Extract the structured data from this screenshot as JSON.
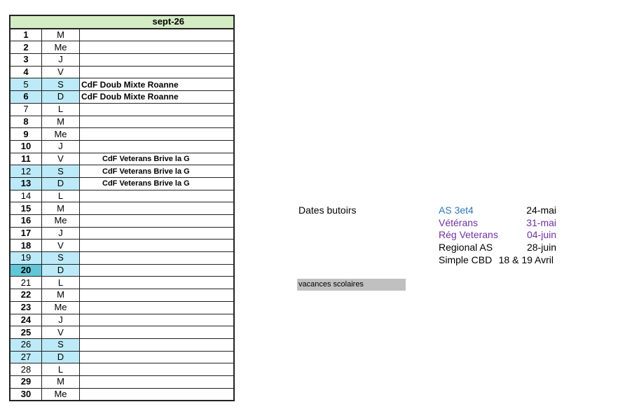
{
  "calendar": {
    "month": "sept-26",
    "colors": {
      "weekend": "#bdeaf8",
      "highlight": "#62c6d6",
      "header": "#d4ecc4"
    },
    "rows": [
      {
        "day": "1",
        "dow": "M",
        "bold": true
      },
      {
        "day": "2",
        "dow": "Me",
        "bold": true
      },
      {
        "day": "3",
        "dow": "J",
        "bold": true
      },
      {
        "day": "4",
        "dow": "V",
        "bold": true
      },
      {
        "day": "5",
        "dow": "S",
        "bold": false,
        "weekend": true,
        "event": "CdF Doub Mixte Roanne"
      },
      {
        "day": "6",
        "dow": "D",
        "bold": true,
        "weekend": true,
        "event": "CdF Doub Mixte Roanne"
      },
      {
        "day": "7",
        "dow": "L",
        "bold": false
      },
      {
        "day": "8",
        "dow": "M",
        "bold": true
      },
      {
        "day": "9",
        "dow": "Me",
        "bold": true
      },
      {
        "day": "10",
        "dow": "J",
        "bold": true
      },
      {
        "day": "11",
        "dow": "V",
        "bold": true,
        "event": "CdF Veterans Brive la G",
        "center": true
      },
      {
        "day": "12",
        "dow": "S",
        "bold": false,
        "weekend": true,
        "event": "CdF Veterans Brive la G",
        "center": true
      },
      {
        "day": "13",
        "dow": "D",
        "bold": true,
        "weekend": true,
        "event": "CdF Veterans Brive la G",
        "center": true
      },
      {
        "day": "14",
        "dow": "L",
        "bold": false
      },
      {
        "day": "15",
        "dow": "M",
        "bold": true
      },
      {
        "day": "16",
        "dow": "Me",
        "bold": true
      },
      {
        "day": "17",
        "dow": "J",
        "bold": true
      },
      {
        "day": "18",
        "dow": "V",
        "bold": true
      },
      {
        "day": "19",
        "dow": "S",
        "bold": false,
        "weekend": true
      },
      {
        "day": "20",
        "dow": "D",
        "bold": true,
        "weekend": true,
        "highlight": true
      },
      {
        "day": "21",
        "dow": "L",
        "bold": false
      },
      {
        "day": "22",
        "dow": "M",
        "bold": true
      },
      {
        "day": "23",
        "dow": "Me",
        "bold": true
      },
      {
        "day": "24",
        "dow": "J",
        "bold": true
      },
      {
        "day": "25",
        "dow": "V",
        "bold": true
      },
      {
        "day": "26",
        "dow": "S",
        "bold": false,
        "weekend": true
      },
      {
        "day": "27",
        "dow": "D",
        "bold": false,
        "weekend": true
      },
      {
        "day": "28",
        "dow": "L",
        "bold": false
      },
      {
        "day": "29",
        "dow": "M",
        "bold": true
      },
      {
        "day": "30",
        "dow": "Me",
        "bold": true
      }
    ]
  },
  "deadlines": {
    "title": "Dates butoirs",
    "items": [
      {
        "label": "AS 3et4",
        "date": "24-mai",
        "color": "#2e75b6",
        "date_color": "#000000"
      },
      {
        "label": "Vétérans",
        "date": "31-mai",
        "color": "#7030a0",
        "date_color": "#7030a0"
      },
      {
        "label": "Rég Veterans",
        "date": "04-juin",
        "color": "#7030a0",
        "date_color": "#7030a0"
      },
      {
        "label": "Regional AS",
        "date": "28-juin",
        "color": "#000000",
        "date_color": "#000000"
      },
      {
        "label": "Simple CBD",
        "date": "18 & 19 Avril",
        "color": "#000000",
        "date_color": "#000000"
      }
    ]
  },
  "legend": {
    "vacances": "vacances scolaires",
    "color": "#c0c0c0"
  }
}
